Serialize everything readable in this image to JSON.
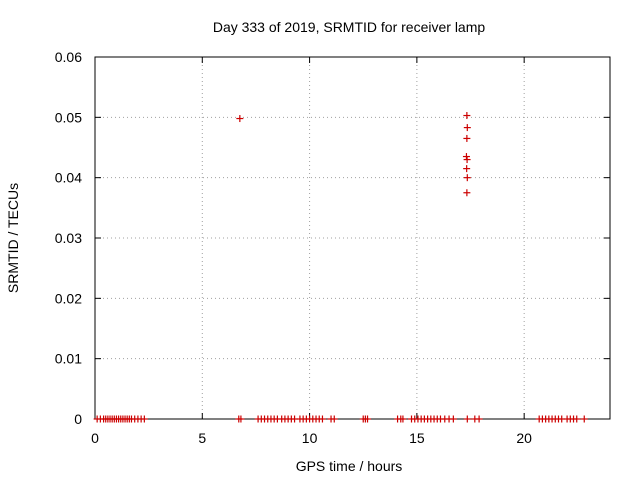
{
  "chart_data": {
    "type": "scatter",
    "title": "Day 333 of 2019, SRMTID for receiver lamp",
    "xlabel": "GPS time / hours",
    "ylabel": "SRMTID / TECUs",
    "xlim": [
      0,
      24
    ],
    "ylim": [
      0,
      0.06
    ],
    "xticks": [
      0,
      5,
      10,
      15,
      20
    ],
    "xtick_labels": [
      "0",
      "5",
      "10",
      "15",
      "20"
    ],
    "yticks": [
      0,
      0.01,
      0.02,
      0.03,
      0.04,
      0.05,
      0.06
    ],
    "ytick_labels": [
      "0",
      "0.01",
      "0.02",
      "0.03",
      "0.04",
      "0.05",
      "0.06"
    ],
    "grid": true,
    "marker": "+",
    "color": "#cc0000",
    "series": [
      {
        "name": "SRMTID",
        "points": [
          [
            6.75,
            0.0498
          ],
          [
            17.33,
            0.0503
          ],
          [
            17.35,
            0.0483
          ],
          [
            17.33,
            0.0465
          ],
          [
            17.31,
            0.0435
          ],
          [
            17.34,
            0.043
          ],
          [
            17.32,
            0.0415
          ],
          [
            17.35,
            0.04
          ],
          [
            17.33,
            0.0375
          ],
          [
            0.1,
            0
          ],
          [
            0.25,
            0
          ],
          [
            0.4,
            0
          ],
          [
            0.5,
            0
          ],
          [
            0.6,
            0
          ],
          [
            0.7,
            0
          ],
          [
            0.8,
            0
          ],
          [
            0.9,
            0
          ],
          [
            1.0,
            0
          ],
          [
            1.1,
            0
          ],
          [
            1.2,
            0
          ],
          [
            1.3,
            0
          ],
          [
            1.4,
            0
          ],
          [
            1.5,
            0
          ],
          [
            1.6,
            0
          ],
          [
            1.7,
            0
          ],
          [
            1.85,
            0
          ],
          [
            2.0,
            0
          ],
          [
            2.15,
            0
          ],
          [
            2.3,
            0
          ],
          [
            6.7,
            0
          ],
          [
            6.8,
            0
          ],
          [
            7.6,
            0
          ],
          [
            7.75,
            0
          ],
          [
            7.9,
            0
          ],
          [
            8.05,
            0
          ],
          [
            8.2,
            0
          ],
          [
            8.35,
            0
          ],
          [
            8.5,
            0
          ],
          [
            8.7,
            0
          ],
          [
            8.85,
            0
          ],
          [
            9.0,
            0
          ],
          [
            9.15,
            0
          ],
          [
            9.3,
            0
          ],
          [
            9.55,
            0
          ],
          [
            9.7,
            0
          ],
          [
            9.85,
            0
          ],
          [
            10.0,
            0
          ],
          [
            10.15,
            0
          ],
          [
            10.3,
            0
          ],
          [
            10.45,
            0
          ],
          [
            10.6,
            0
          ],
          [
            11.0,
            0
          ],
          [
            11.15,
            0
          ],
          [
            12.5,
            0
          ],
          [
            12.6,
            0
          ],
          [
            12.7,
            0
          ],
          [
            14.1,
            0
          ],
          [
            14.25,
            0
          ],
          [
            14.35,
            0
          ],
          [
            14.75,
            0
          ],
          [
            14.9,
            0
          ],
          [
            15.05,
            0
          ],
          [
            15.2,
            0
          ],
          [
            15.35,
            0
          ],
          [
            15.5,
            0
          ],
          [
            15.65,
            0
          ],
          [
            15.8,
            0
          ],
          [
            15.95,
            0
          ],
          [
            16.1,
            0
          ],
          [
            16.3,
            0
          ],
          [
            16.5,
            0
          ],
          [
            16.7,
            0
          ],
          [
            17.35,
            0
          ],
          [
            17.7,
            0
          ],
          [
            17.9,
            0
          ],
          [
            20.7,
            0
          ],
          [
            20.85,
            0
          ],
          [
            21.0,
            0
          ],
          [
            21.15,
            0
          ],
          [
            21.3,
            0
          ],
          [
            21.45,
            0
          ],
          [
            21.6,
            0
          ],
          [
            21.75,
            0
          ],
          [
            22.0,
            0
          ],
          [
            22.15,
            0
          ],
          [
            22.3,
            0
          ],
          [
            22.45,
            0
          ],
          [
            22.8,
            0
          ]
        ]
      }
    ]
  }
}
